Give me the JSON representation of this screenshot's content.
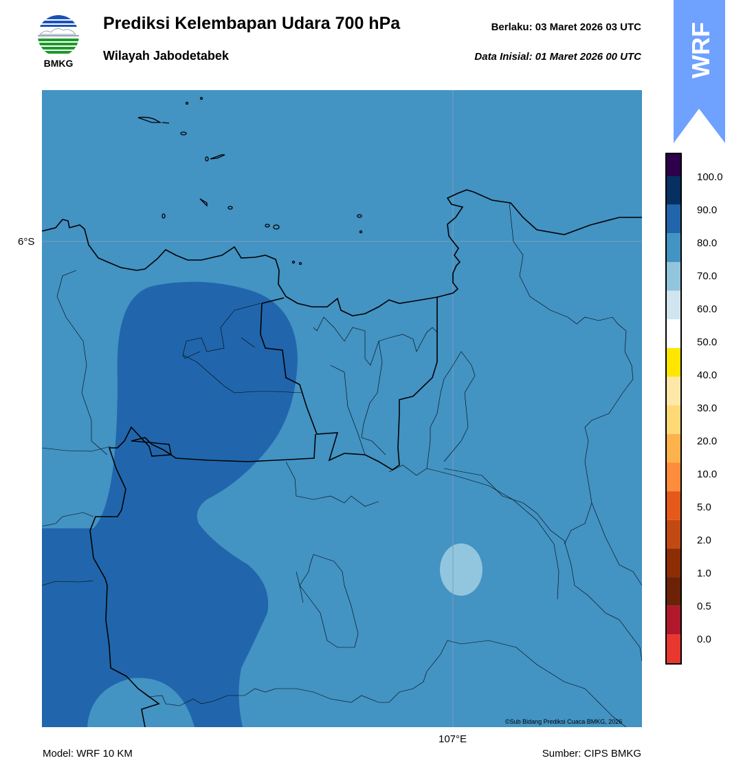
{
  "header": {
    "title": "Prediksi Kelembapan Udara 700 hPa",
    "subtitle": "Wilayah Jabodetabek",
    "valid_time": "Berlaku:  03 Maret 2026 03 UTC",
    "initial_time": "Data Inisial:  01 Maret 2026 00 UTC"
  },
  "logo": {
    "text": "BMKG",
    "icon": "bmkg-logo-icon"
  },
  "badge": {
    "text": "WRF",
    "color": "#6fa1ff"
  },
  "map": {
    "lat_label": "6°S",
    "lon_label": "107°E",
    "copyright": "©Sub Bidang Prediksi Cuaca BMKG, 2026",
    "colors": {
      "level_70_80": "#4393c3",
      "level_80_90": "#2166ac",
      "level_60_70": "#92c5de"
    }
  },
  "footer": {
    "model": "Model: WRF 10 KM",
    "source": "Sumber: CIPS BMKG"
  },
  "colorbar": {
    "ticks": [
      "100.0",
      "90.0",
      "80.0",
      "70.0",
      "60.0",
      "50.0",
      "40.0",
      "30.0",
      "20.0",
      "10.0",
      "5.0",
      "2.0",
      "1.0",
      "0.5",
      "0.0"
    ],
    "colors_top_to_bottom": [
      "#2d004b",
      "#053061",
      "#2166ac",
      "#4393c3",
      "#92c5de",
      "#d1e5f0",
      "#ffffff",
      "#ffe600",
      "#fee8a8",
      "#fed976",
      "#feb24c",
      "#fd8d3c",
      "#e5591a",
      "#c24a12",
      "#8c2d04",
      "#6b2206",
      "#b2182b",
      "#e8372e"
    ]
  }
}
